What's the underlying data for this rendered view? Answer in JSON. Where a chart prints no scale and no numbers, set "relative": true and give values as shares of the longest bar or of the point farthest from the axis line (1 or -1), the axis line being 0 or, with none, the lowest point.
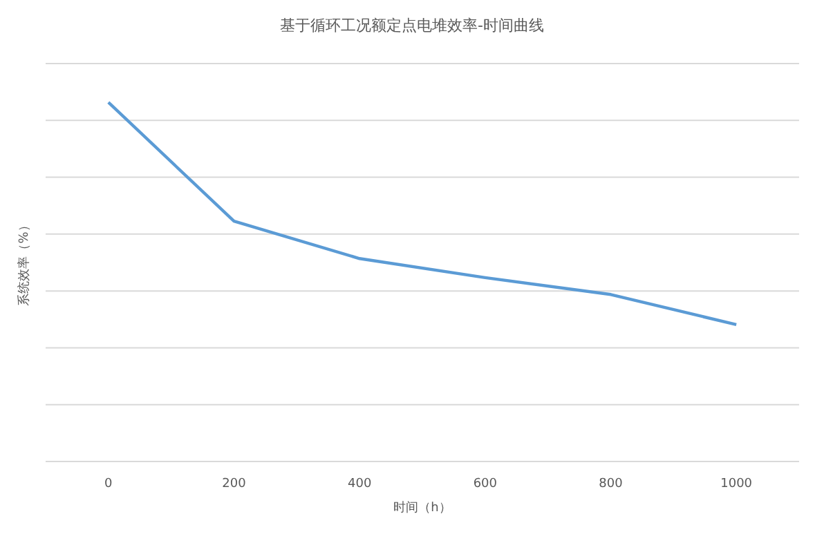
{
  "chart_data": {
    "type": "line",
    "title": "基于循环工况额定点电堆效率-时间曲线",
    "xlabel": "时间（h）",
    "ylabel": "系统效率（%）",
    "categories": [
      "0",
      "200",
      "400",
      "600",
      "800",
      "1000"
    ],
    "series": [
      {
        "color": "#5b9bd5",
        "values": [
          1,
          0.669,
          0.565,
          0.512,
          0.465,
          0.381
        ]
      }
    ],
    "relative": true,
    "grid": "y",
    "legend": false,
    "marker": "none",
    "line_style": "solid"
  }
}
